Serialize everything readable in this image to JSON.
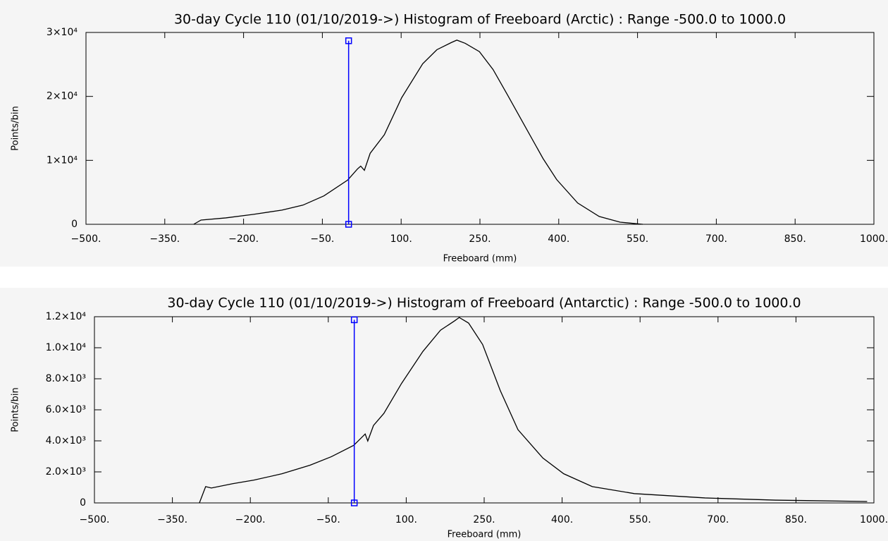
{
  "chart_data": [
    {
      "type": "line",
      "title": "30-day Cycle 110 (01/10/2019->) Histogram of Freeboard (Arctic) :  Range -500.0 to 1000.0",
      "x_label": "Freeboard (mm)",
      "y_label": "Points/bin",
      "xlim": [
        -500,
        1000
      ],
      "xticks": [
        {
          "value": -500,
          "label": "−500."
        },
        {
          "value": -350,
          "label": "−350."
        },
        {
          "value": -200,
          "label": "−200."
        },
        {
          "value": -50,
          "label": "−50."
        },
        {
          "value": 100,
          "label": "100."
        },
        {
          "value": 250,
          "label": "250."
        },
        {
          "value": 400,
          "label": "400."
        },
        {
          "value": 550,
          "label": "550."
        },
        {
          "value": 700,
          "label": "700."
        },
        {
          "value": 850,
          "label": "850."
        },
        {
          "value": 1000,
          "label": "1000."
        }
      ],
      "ylim": [
        0,
        30000
      ],
      "yticks": [
        0,
        {
          "value": 10000,
          "label": "1×10⁴"
        },
        {
          "value": 20000,
          "label": "2×10⁴"
        },
        {
          "value": 30000,
          "label": "3×10⁴"
        }
      ],
      "series": [
        {
          "color": "#000000",
          "x": [
            -295,
            -281,
            -234,
            -181,
            -127,
            -87,
            -47,
            -2,
            17,
            23,
            30,
            41,
            68,
            101,
            141,
            168,
            195,
            206,
            222,
            249,
            275,
            302,
            336,
            370,
            396,
            436,
            477,
            517,
            560
          ],
          "values": [
            0,
            667,
            1000,
            1556,
            2222,
            3000,
            4444,
            6900,
            8667,
            9100,
            8444,
            11100,
            14000,
            19800,
            25100,
            27300,
            28400,
            28800,
            28300,
            27000,
            24200,
            20300,
            15300,
            10300,
            7000,
            3333,
            1222,
            333,
            0
          ]
        }
      ],
      "reference_line": {
        "color": "#0000ff",
        "x": [
          0,
          0
        ],
        "values": [
          0,
          28700
        ]
      }
    },
    {
      "type": "line",
      "title": "30-day Cycle 110 (01/10/2019->) Histogram of Freeboard (Antarctic) :  Range -500.0 to 1000.0",
      "x_label": "Freeboard (mm)",
      "y_label": "Points/bin",
      "xlim": [
        -500,
        1000
      ],
      "xticks": [
        {
          "value": -500,
          "label": "−500."
        },
        {
          "value": -350,
          "label": "−350."
        },
        {
          "value": -200,
          "label": "−200."
        },
        {
          "value": -50,
          "label": "−50."
        },
        {
          "value": 100,
          "label": "100."
        },
        {
          "value": 250,
          "label": "250."
        },
        {
          "value": 400,
          "label": "400."
        },
        {
          "value": 550,
          "label": "550."
        },
        {
          "value": 700,
          "label": "700."
        },
        {
          "value": 850,
          "label": "850."
        },
        {
          "value": 1000,
          "label": "1000."
        }
      ],
      "ylim": [
        0,
        12000
      ],
      "yticks": [
        0,
        {
          "value": 2000,
          "label": "2.0×10³"
        },
        {
          "value": 4000,
          "label": "4.0×10³"
        },
        {
          "value": 6000,
          "label": "6.0×10³"
        },
        {
          "value": 8000,
          "label": "8.0×10³"
        },
        {
          "value": 10000,
          "label": "1.0×10⁴"
        },
        {
          "value": 12000,
          "label": "1.2×10⁴"
        }
      ],
      "series": [
        {
          "color": "#000000",
          "x": [
            -298,
            -286,
            -275,
            -234,
            -193,
            -139,
            -85,
            -44,
            -1,
            21,
            26,
            37,
            57,
            91,
            132,
            166,
            193,
            202,
            220,
            247,
            281,
            315,
            363,
            403,
            458,
            539,
            675,
            810,
            987
          ],
          "values": [
            0,
            1050,
            960,
            1240,
            1470,
            1880,
            2430,
            2980,
            3710,
            4440,
            3990,
            4990,
            5770,
            7700,
            9760,
            11130,
            11730,
            11950,
            11590,
            10210,
            7240,
            4720,
            2890,
            1880,
            1050,
            600,
            320,
            180,
            90
          ]
        }
      ],
      "reference_line": {
        "color": "#0000ff",
        "x": [
          0,
          0
        ],
        "values": [
          0,
          11800
        ]
      }
    }
  ]
}
